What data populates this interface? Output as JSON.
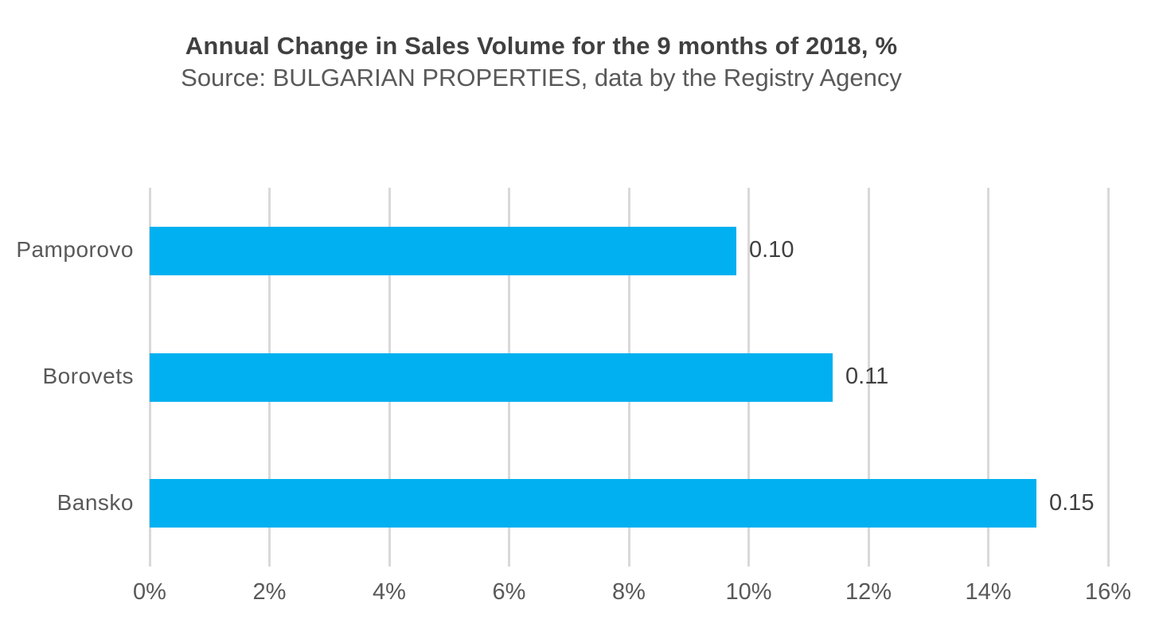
{
  "header": {
    "title": "Annual Change in Sales Volume for the 9 months of 2018, %",
    "subtitle": "Source: BULGARIAN PROPERTIES, data by the Registry Agency"
  },
  "colors": {
    "bar": "#00B0F0",
    "gridline": "#D9D9D9",
    "title_text": "#404040",
    "subtitle_text": "#595959",
    "category_text": "#595959",
    "tick_text": "#595959",
    "value_text": "#404040",
    "background": "#FFFFFF"
  },
  "chart_data": {
    "type": "bar",
    "orientation": "horizontal",
    "title": "Annual Change in Sales Volume for the 9 months of 2018, %",
    "subtitle": "Source: BULGARIAN PROPERTIES, data by the Registry Agency",
    "categories": [
      "Pamporovo",
      "Borovets",
      "Bansko"
    ],
    "values": [
      0.098,
      0.114,
      0.148
    ],
    "data_labels": [
      "0.10",
      "0.11",
      "0.15"
    ],
    "xlabel": "",
    "ylabel": "",
    "x_ticks": [
      "0%",
      "2%",
      "4%",
      "6%",
      "8%",
      "10%",
      "12%",
      "14%",
      "16%"
    ],
    "x_tick_values": [
      0,
      0.02,
      0.04,
      0.06,
      0.08,
      0.1,
      0.12,
      0.14,
      0.16
    ],
    "xlim": [
      0,
      0.16
    ],
    "grid": "vertical",
    "legend": "none"
  }
}
